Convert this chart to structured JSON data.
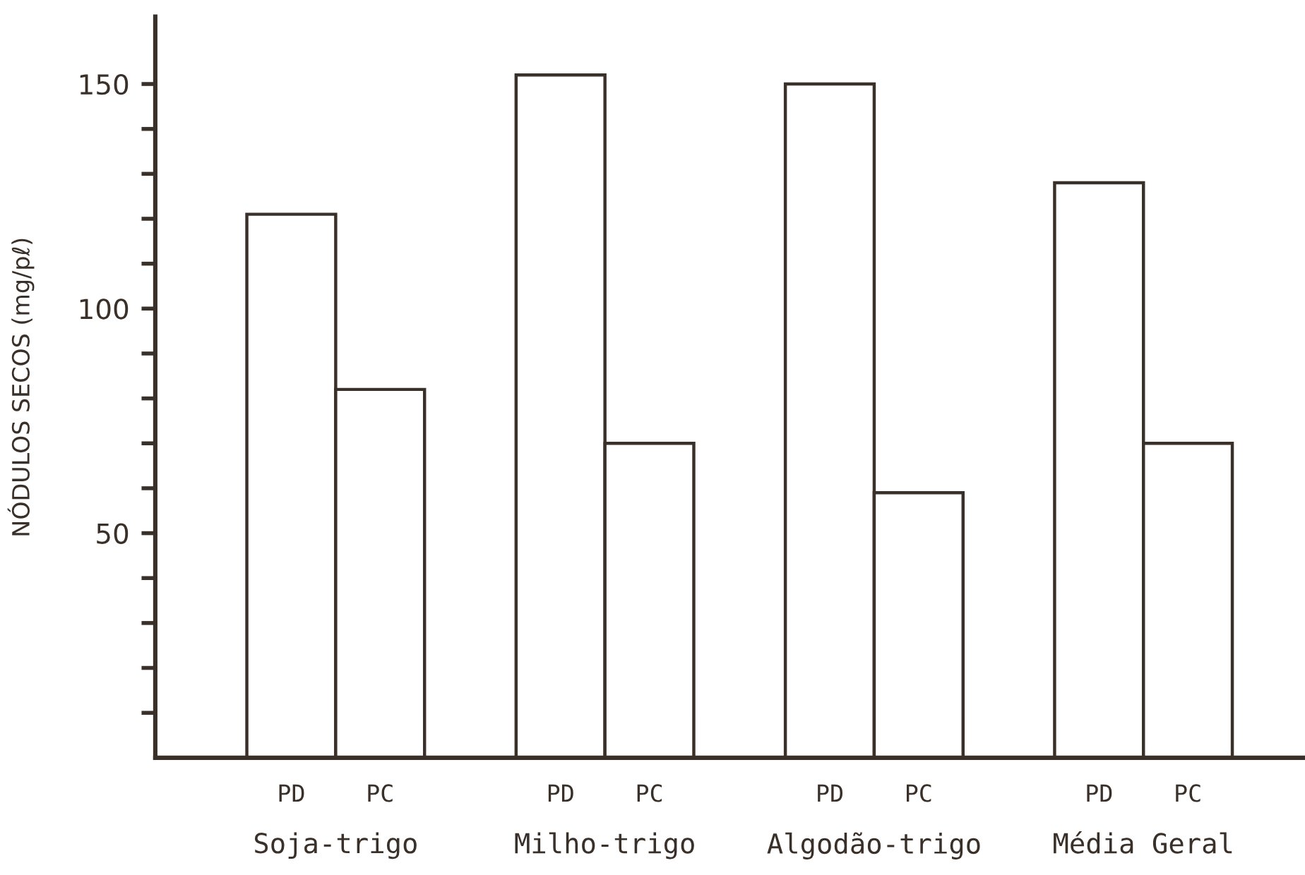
{
  "chart_data": {
    "type": "bar",
    "ylabel": "NÓDULOS SECOS (mg/pℓ)",
    "categories": [
      "Soja-trigo",
      "Milho-trigo",
      "Algodão-trigo",
      "Média Geral"
    ],
    "series": [
      {
        "name": "PD",
        "color": "#ffffff",
        "values": [
          121,
          152,
          150,
          128
        ]
      },
      {
        "name": "PC",
        "color": "#ffffff",
        "values": [
          82,
          70,
          59,
          70
        ]
      }
    ],
    "ylim": [
      0,
      165
    ],
    "yticks": [
      {
        "value": 10,
        "label": null
      },
      {
        "value": 20,
        "label": null
      },
      {
        "value": 30,
        "label": null
      },
      {
        "value": 40,
        "label": null
      },
      50,
      {
        "value": 60,
        "label": null
      },
      {
        "value": 70,
        "label": null
      },
      {
        "value": 80,
        "label": null
      },
      {
        "value": 90,
        "label": null
      },
      100,
      {
        "value": 110,
        "label": null
      },
      {
        "value": 120,
        "label": null
      },
      {
        "value": 130,
        "label": null
      },
      {
        "value": 140,
        "label": null
      },
      150
    ],
    "grid": false,
    "legend": false
  }
}
